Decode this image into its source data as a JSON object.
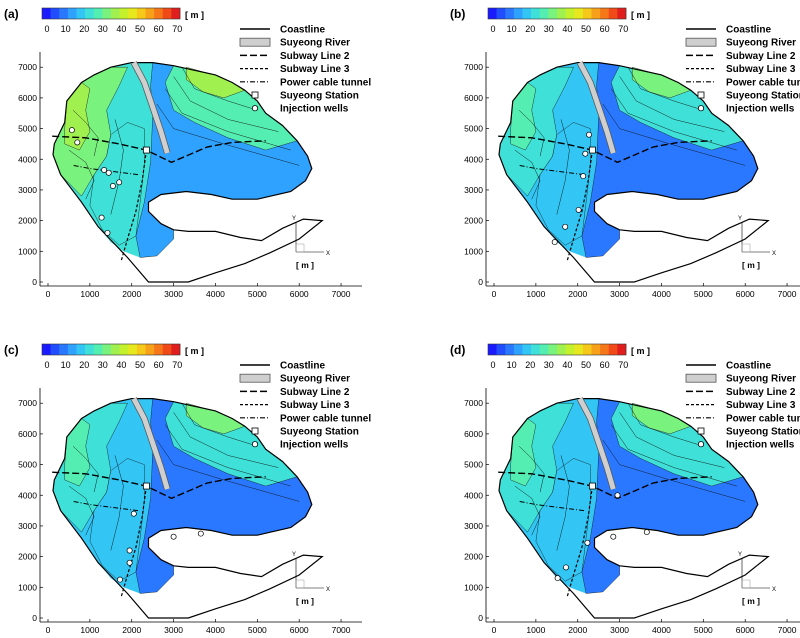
{
  "figure": {
    "panels": [
      {
        "label": "(a)",
        "wells": [
          [
            570,
            4950
          ],
          [
            700,
            4550
          ],
          [
            1340,
            3650
          ],
          [
            1450,
            3560
          ],
          [
            1550,
            3130
          ],
          [
            1700,
            3250
          ],
          [
            1280,
            2100
          ],
          [
            1420,
            1600
          ]
        ]
      },
      {
        "label": "(b)",
        "wells": [
          [
            2270,
            4800
          ],
          [
            2180,
            4180
          ],
          [
            2130,
            3450
          ],
          [
            2020,
            2350
          ],
          [
            1700,
            1800
          ],
          [
            1450,
            1300
          ]
        ]
      },
      {
        "label": "(c)",
        "wells": [
          [
            2050,
            3400
          ],
          [
            3000,
            2650
          ],
          [
            3650,
            2750
          ],
          [
            1950,
            2200
          ],
          [
            1950,
            1800
          ],
          [
            1720,
            1250
          ]
        ]
      },
      {
        "label": "(d)",
        "wells": [
          [
            2950,
            4000
          ],
          [
            3650,
            2800
          ],
          [
            2850,
            2650
          ],
          [
            2230,
            2450
          ],
          [
            1720,
            1650
          ],
          [
            1520,
            1300
          ]
        ]
      }
    ],
    "colorbar": {
      "ticks": [
        "0",
        "10",
        "20",
        "30",
        "40",
        "50",
        "60",
        "70"
      ],
      "unit": "[ m ]",
      "colors": [
        "#1a1aff",
        "#1f4dff",
        "#2a78ff",
        "#2fa2ff",
        "#33c6f5",
        "#3fe0d8",
        "#55eeb2",
        "#7af27e",
        "#a0f050",
        "#c4f02c",
        "#e8e81e",
        "#f5c81a",
        "#f7a11a",
        "#f57719",
        "#ef4a18",
        "#e01e1e"
      ]
    },
    "legend": [
      {
        "style": "coastline",
        "label": "Coastline"
      },
      {
        "style": "river",
        "label": "Suyeong River"
      },
      {
        "style": "line2",
        "label": "Subway Line 2"
      },
      {
        "style": "line3",
        "label": "Subway Line 3"
      },
      {
        "style": "cable",
        "label": "Power cable tunnel"
      },
      {
        "style": "station",
        "label": "Suyeong Station"
      },
      {
        "style": "well",
        "label": "Injection wells"
      }
    ],
    "x_ticks": [
      "0",
      "1000",
      "2000",
      "3000",
      "4000",
      "5000",
      "6000",
      "7000"
    ],
    "y_ticks": [
      "0",
      "1000",
      "2000",
      "3000",
      "4000",
      "5000",
      "6000",
      "7000"
    ],
    "axes_triad": {
      "x": "X",
      "y": "Y"
    },
    "scale_unit": "[ m ]"
  }
}
